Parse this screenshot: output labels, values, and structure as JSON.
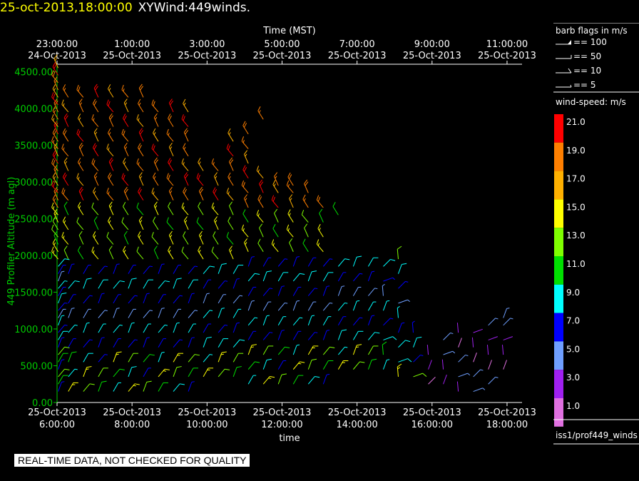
{
  "header": {
    "timestamp": "25-oct-2013,18:00:00",
    "name": "XYWind:449winds."
  },
  "chart_data": {
    "type": "wind-barb",
    "top_axis_label": "Time (MST)",
    "top_ticks": [
      {
        "t": 6,
        "time": "23:00:00",
        "date": "24-Oct-2013"
      },
      {
        "t": 8,
        "time": "1:00:00",
        "date": "25-Oct-2013"
      },
      {
        "t": 10,
        "time": "3:00:00",
        "date": "25-Oct-2013"
      },
      {
        "t": 12,
        "time": "5:00:00",
        "date": "25-Oct-2013"
      },
      {
        "t": 14,
        "time": "7:00:00",
        "date": "25-Oct-2013"
      },
      {
        "t": 16,
        "time": "9:00:00",
        "date": "25-Oct-2013"
      },
      {
        "t": 18,
        "time": "11:00:00",
        "date": "25-Oct-2013"
      }
    ],
    "bottom_axis_label": "time",
    "bottom_ticks": [
      {
        "t": 6,
        "date": "25-Oct-2013",
        "time": "6:00:00"
      },
      {
        "t": 8,
        "date": "25-Oct-2013",
        "time": "8:00:00"
      },
      {
        "t": 10,
        "date": "25-Oct-2013",
        "time": "10:00:00"
      },
      {
        "t": 12,
        "date": "25-Oct-2013",
        "time": "12:00:00"
      },
      {
        "t": 14,
        "date": "25-Oct-2013",
        "time": "14:00:00"
      },
      {
        "t": 16,
        "date": "25-Oct-2013",
        "time": "16:00:00"
      },
      {
        "t": 18,
        "date": "25-Oct-2013",
        "time": "18:00:00"
      }
    ],
    "y_axis_label": "449 Profiler Altitude (m agl)",
    "y_ticks": [
      "0.00",
      "500.00",
      "1000.00",
      "1500.00",
      "2000.00",
      "2500.00",
      "3000.00",
      "3500.00",
      "4000.00",
      "4500.00"
    ],
    "xlim": [
      6,
      18.4
    ],
    "ylim": [
      0,
      4600
    ],
    "columns": [
      {
        "t": 6.03,
        "heights": [
          150,
          250,
          350,
          450,
          550,
          650,
          750,
          850,
          950,
          1050,
          1150,
          1250,
          1350,
          1450,
          1550,
          1650,
          1750,
          1850,
          1950,
          2050,
          2150,
          2250,
          2350,
          2450,
          2550,
          2650,
          2750,
          2850,
          2950,
          3050,
          3150,
          3250,
          3350,
          3450,
          3550,
          3650,
          3750,
          3850,
          3950,
          4050,
          4150,
          4250,
          4350,
          4450,
          4550
        ]
      },
      {
        "t": 6.3,
        "heights": [
          150,
          350,
          550,
          750,
          950,
          1150,
          1350,
          1550,
          1750,
          1950,
          2150,
          2350,
          2550,
          2750,
          2950,
          3150,
          3350,
          3550,
          3750,
          3950,
          4150
        ]
      },
      {
        "t": 6.7,
        "heights": [
          150,
          350,
          550,
          750,
          950,
          1150,
          1350,
          1550,
          1750,
          1950,
          2150,
          2350,
          2550,
          2750,
          2950,
          3150,
          3350,
          3550,
          3750,
          3950,
          4150
        ]
      },
      {
        "t": 7.1,
        "heights": [
          150,
          350,
          550,
          750,
          950,
          1150,
          1350,
          1550,
          1750,
          1950,
          2150,
          2350,
          2550,
          2750,
          2950,
          3150,
          3350,
          3550,
          3750,
          3950,
          4150
        ]
      },
      {
        "t": 7.5,
        "heights": [
          150,
          350,
          550,
          750,
          950,
          1150,
          1350,
          1550,
          1750,
          1950,
          2150,
          2350,
          2550,
          2750,
          2950,
          3150,
          3350,
          3550,
          3750,
          3950,
          4150
        ]
      },
      {
        "t": 7.9,
        "heights": [
          150,
          350,
          550,
          750,
          950,
          1150,
          1350,
          1550,
          1750,
          1950,
          2150,
          2350,
          2550,
          2750,
          2950,
          3150,
          3350,
          3550,
          3750,
          3950,
          4150
        ]
      },
      {
        "t": 8.3,
        "heights": [
          150,
          350,
          550,
          750,
          950,
          1150,
          1350,
          1550,
          1750,
          1950,
          2150,
          2350,
          2550,
          2750,
          2950,
          3150,
          3350,
          3550,
          3750,
          3950,
          4150
        ]
      },
      {
        "t": 8.7,
        "heights": [
          150,
          350,
          550,
          750,
          950,
          1150,
          1350,
          1550,
          1750,
          1950,
          2150,
          2350,
          2550,
          2750,
          2950,
          3150,
          3350,
          3550,
          3750,
          3950
        ]
      },
      {
        "t": 9.1,
        "heights": [
          150,
          350,
          550,
          750,
          950,
          1150,
          1350,
          1550,
          1750,
          1950,
          2150,
          2350,
          2550,
          2750,
          2950,
          3150,
          3350,
          3550,
          3750,
          3950
        ]
      },
      {
        "t": 9.5,
        "heights": [
          150,
          350,
          550,
          750,
          950,
          1150,
          1350,
          1550,
          1750,
          1950,
          2150,
          2350,
          2550,
          2750,
          2950,
          3150,
          3350,
          3550,
          3750,
          3950
        ]
      },
      {
        "t": 9.9,
        "heights": [
          350,
          550,
          750,
          950,
          1150,
          1350,
          1550,
          1750,
          1950,
          2150,
          2350,
          2550,
          2750,
          2950,
          3150
        ]
      },
      {
        "t": 10.3,
        "heights": [
          350,
          550,
          750,
          950,
          1150,
          1350,
          1550,
          1750,
          1950,
          2150,
          2350,
          2550,
          2750,
          2950,
          3150
        ]
      },
      {
        "t": 10.7,
        "heights": [
          350,
          550,
          750,
          950,
          1150,
          1350,
          1550,
          1750,
          1950,
          2150,
          2350,
          2550,
          2750,
          2950,
          3150,
          3350,
          3550
        ]
      },
      {
        "t": 11.1,
        "heights": [
          250,
          450,
          650,
          850,
          1050,
          1250,
          1450,
          1650,
          1850,
          2050,
          2250,
          2450,
          2650,
          2850,
          3050,
          3250,
          3450,
          3650
        ]
      },
      {
        "t": 11.5,
        "heights": [
          250,
          450,
          650,
          850,
          1050,
          1250,
          1450,
          1650,
          1850,
          2050,
          2250,
          2450,
          2650,
          2850,
          3050,
          3850
        ]
      },
      {
        "t": 11.9,
        "heights": [
          250,
          450,
          650,
          850,
          1050,
          1250,
          1450,
          1650,
          1850,
          2050,
          2250,
          2450,
          2650,
          2850,
          2950
        ]
      },
      {
        "t": 12.3,
        "heights": [
          250,
          450,
          650,
          850,
          1050,
          1250,
          1450,
          1650,
          1850,
          2050,
          2250,
          2450,
          2650,
          2850,
          2950
        ]
      },
      {
        "t": 12.7,
        "heights": [
          250,
          450,
          650,
          850,
          1050,
          1250,
          1450,
          1650,
          1850,
          2050,
          2250,
          2450,
          2650,
          2850
        ]
      },
      {
        "t": 13.1,
        "heights": [
          250,
          450,
          650,
          850,
          1050,
          1250,
          1450,
          1650,
          1850,
          2050,
          2250,
          2450,
          2650
        ]
      },
      {
        "t": 13.5,
        "heights": [
          450,
          650,
          850,
          1050,
          1250,
          1450,
          1650,
          1850,
          2550
        ]
      },
      {
        "t": 13.9,
        "heights": [
          450,
          650,
          850,
          1050,
          1250,
          1450,
          1650,
          1850
        ]
      },
      {
        "t": 14.3,
        "heights": [
          450,
          650,
          850,
          1050,
          1250,
          1450,
          1650,
          1850
        ]
      },
      {
        "t": 14.7,
        "heights": [
          450,
          650,
          850,
          1050,
          1250,
          1450,
          1650,
          1850
        ]
      },
      {
        "t": 15.1,
        "heights": [
          350,
          550,
          750,
          950,
          1150,
          1350,
          1550,
          1750,
          1950
        ]
      },
      {
        "t": 15.5,
        "heights": [
          350,
          550,
          750,
          950
        ]
      },
      {
        "t": 15.9,
        "heights": [
          250,
          450,
          650
        ]
      },
      {
        "t": 16.3,
        "heights": [
          250,
          450,
          650,
          850
        ]
      },
      {
        "t": 16.7,
        "heights": [
          150,
          350,
          550,
          750,
          950
        ]
      },
      {
        "t": 17.1,
        "heights": [
          150,
          350,
          550,
          750,
          950
        ]
      },
      {
        "t": 17.5,
        "heights": [
          250,
          450,
          650,
          850,
          1050
        ]
      },
      {
        "t": 17.9,
        "heights": [
          450,
          650,
          850,
          1050,
          1150
        ]
      }
    ]
  },
  "legend": {
    "barb_title": "barb flags in m/s",
    "barb_items": [
      {
        "label": "== 100"
      },
      {
        "label": "== 50"
      },
      {
        "label": "== 10"
      },
      {
        "label": "== 5"
      }
    ],
    "speed_title": "wind-speed: m/s",
    "speed_scale": [
      {
        "label": "21.0",
        "color": "#ff0000"
      },
      {
        "label": "19.0",
        "color": "#ff7f00"
      },
      {
        "label": "17.0",
        "color": "#ffb000"
      },
      {
        "label": "15.0",
        "color": "#ffff00"
      },
      {
        "label": "13.0",
        "color": "#7fff00"
      },
      {
        "label": "11.0",
        "color": "#00e000"
      },
      {
        "label": "9.0",
        "color": "#00ffff"
      },
      {
        "label": "7.0",
        "color": "#0000ff"
      },
      {
        "label": "5.0",
        "color": "#6f9fff"
      },
      {
        "label": "3.0",
        "color": "#a020f0"
      },
      {
        "label": "1.0",
        "color": "#e070e0"
      }
    ],
    "source": "iss1/prof449_winds"
  },
  "footer": {
    "note": "REAL-TIME DATA, NOT CHECKED FOR QUALITY"
  },
  "colors": {
    "axis_green": "#00cc00",
    "axis_white": "#ffffff",
    "background": "#000000"
  }
}
